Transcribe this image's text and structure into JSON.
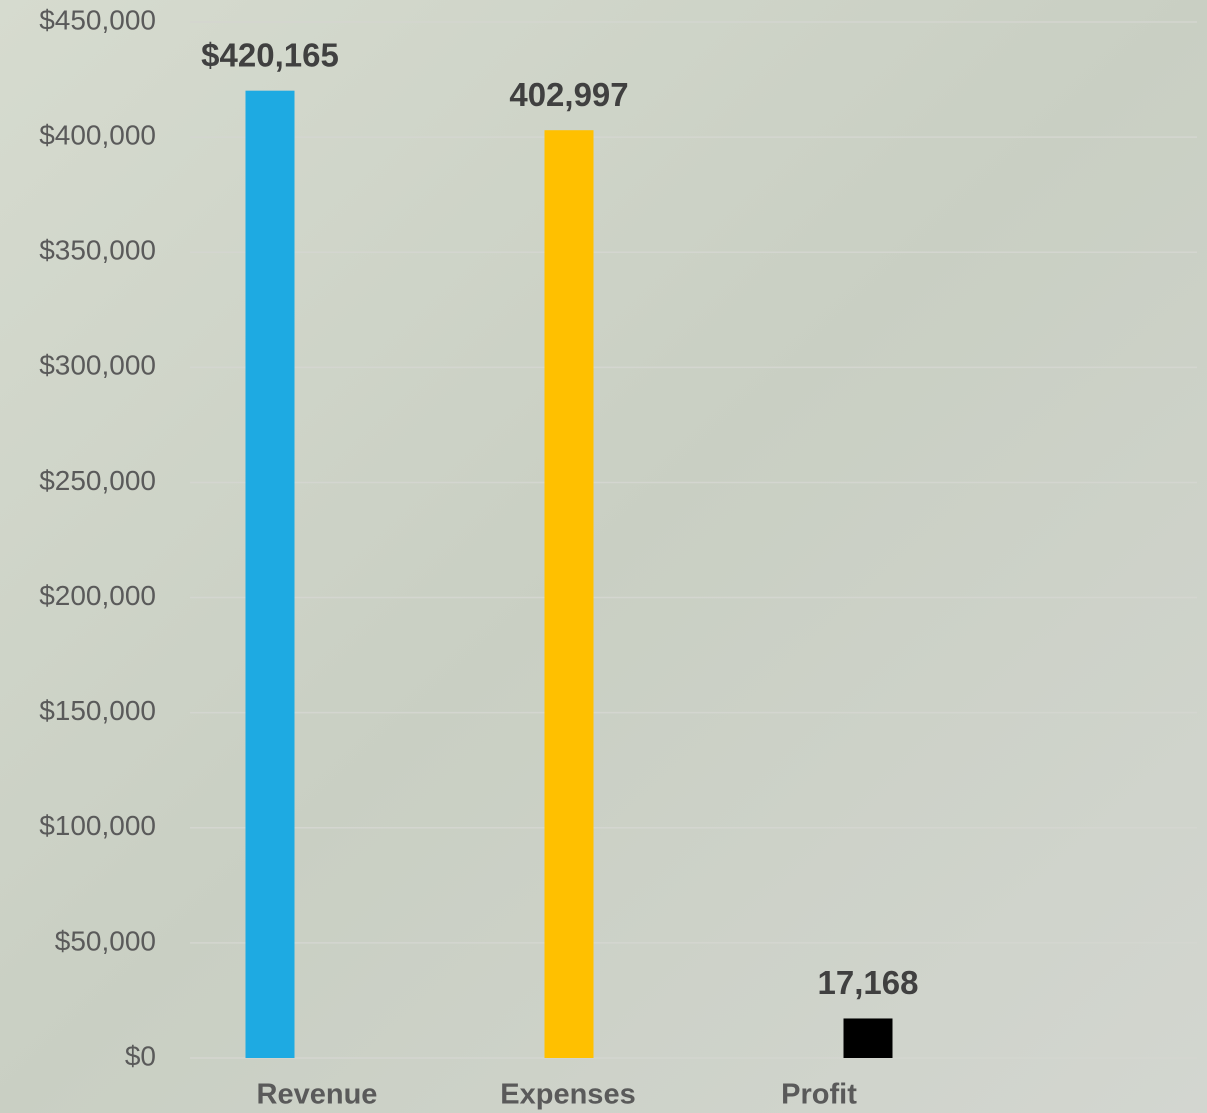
{
  "chart_data": {
    "type": "bar",
    "categories": [
      "Revenue",
      "Expenses",
      "Profit"
    ],
    "values": [
      420165,
      402997,
      17168
    ],
    "value_labels": [
      "$420,165",
      "402,997",
      "17,168"
    ],
    "colors": [
      "#1eaae2",
      "#ffc000",
      "#000000"
    ],
    "ylim": [
      0,
      450000
    ],
    "yticks": [
      {
        "value": 0,
        "label": "$0"
      },
      {
        "value": 50000,
        "label": "$50,000"
      },
      {
        "value": 100000,
        "label": "$100,000"
      },
      {
        "value": 150000,
        "label": "$150,000"
      },
      {
        "value": 200000,
        "label": "$200,000"
      },
      {
        "value": 250000,
        "label": "$250,000"
      },
      {
        "value": 300000,
        "label": "$300,000"
      },
      {
        "value": 350000,
        "label": "$350,000"
      },
      {
        "value": 400000,
        "label": "$400,000"
      },
      {
        "value": 450000,
        "label": "$450,000"
      }
    ],
    "grid": true
  }
}
